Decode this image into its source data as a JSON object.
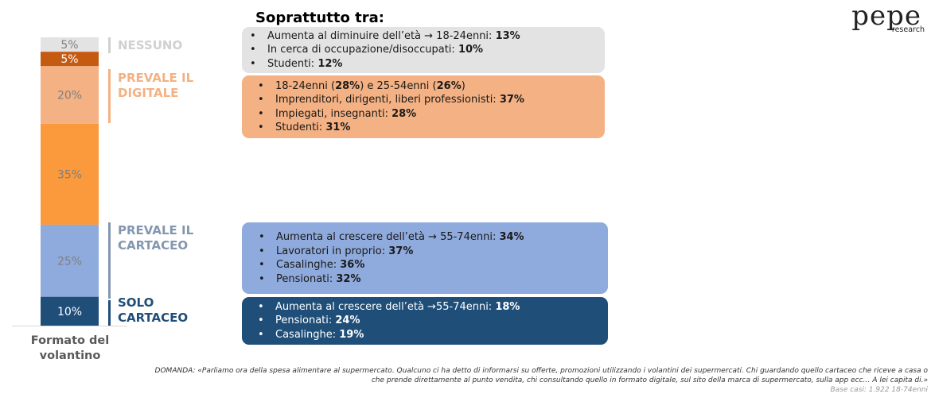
{
  "chart_data": {
    "type": "stacked-bar",
    "categories": [
      "Formato del volantino"
    ],
    "series": [
      {
        "color": "#e3e3e3",
        "text_color": "#7f7f7f",
        "values": [
          5
        ],
        "value_labels": [
          "5%"
        ]
      },
      {
        "color": "#c55a11",
        "text_color": "#ffffff",
        "values": [
          5
        ],
        "value_labels": [
          "5%"
        ]
      },
      {
        "color": "#f4b183",
        "text_color": "#7f7f7f",
        "values": [
          20
        ],
        "value_labels": [
          "20%"
        ]
      },
      {
        "color": "#fb9a3c",
        "text_color": "#7f7f7f",
        "values": [
          35
        ],
        "value_labels": [
          "35%"
        ]
      },
      {
        "color": "#8faadc",
        "text_color": "#7f7f7f",
        "values": [
          25
        ],
        "value_labels": [
          "25%"
        ]
      },
      {
        "color": "#1f4e79",
        "text_color": "#ffffff",
        "values": [
          10
        ],
        "value_labels": [
          "10%"
        ]
      }
    ]
  },
  "heading": "Soprattutto tra:",
  "groups": [
    {
      "label": "NESSUNO",
      "label_color": "#d0d0d0",
      "box_color": "#e3e3e3",
      "box_text": "#1a1a1a",
      "bullets": [
        [
          {
            "text": "Aumenta al diminuire dell’età → 18-24enni: ",
            "bold": false
          },
          {
            "text": "13%",
            "bold": true
          }
        ],
        [
          {
            "text": "In cerca di occupazione/disoccupati: ",
            "bold": false
          },
          {
            "text": "10%",
            "bold": true
          }
        ],
        [
          {
            "text": "Studenti: ",
            "bold": false
          },
          {
            "text": "12%",
            "bold": true
          }
        ]
      ]
    },
    {
      "label": "PREVALE IL DIGITALE",
      "label_color": "#f4b183",
      "box_color": "#f4b183",
      "box_text": "#1a1a1a",
      "bullets": [
        [
          {
            "text": "18-24enni (",
            "bold": false
          },
          {
            "text": "28%",
            "bold": true
          },
          {
            "text": ") e 25-54enni (",
            "bold": false
          },
          {
            "text": "26%",
            "bold": true
          },
          {
            "text": ")",
            "bold": false
          }
        ],
        [
          {
            "text": "Imprenditori, dirigenti, liberi professionisti: ",
            "bold": false
          },
          {
            "text": "37%",
            "bold": true
          }
        ],
        [
          {
            "text": "Impiegati, insegnanti: ",
            "bold": false
          },
          {
            "text": "28%",
            "bold": true
          }
        ],
        [
          {
            "text": "Studenti: ",
            "bold": false
          },
          {
            "text": "31%",
            "bold": true
          }
        ]
      ]
    },
    {
      "label": "PREVALE IL CARTACEO",
      "label_color": "#8497b0",
      "box_color": "#8faadc",
      "box_text": "#1a1a1a",
      "bullets": [
        [
          {
            "text": "Aumenta al crescere dell’età → 55-74enni: ",
            "bold": false
          },
          {
            "text": "34%",
            "bold": true
          }
        ],
        [
          {
            "text": "Lavoratori in proprio: ",
            "bold": false
          },
          {
            "text": "37%",
            "bold": true
          }
        ],
        [
          {
            "text": "Casalinghe: ",
            "bold": false
          },
          {
            "text": "36%",
            "bold": true
          }
        ],
        [
          {
            "text": "Pensionati: ",
            "bold": false
          },
          {
            "text": "32%",
            "bold": true
          }
        ]
      ]
    },
    {
      "label": "SOLO CARTACEO",
      "label_color": "#1f4e79",
      "box_color": "#1f4e79",
      "box_text": "#ffffff",
      "bullets": [
        [
          {
            "text": "Aumenta al crescere dell’età →55-74enni: ",
            "bold": false
          },
          {
            "text": "18%",
            "bold": true
          }
        ],
        [
          {
            "text": "Pensionati: ",
            "bold": false
          },
          {
            "text": "24%",
            "bold": true
          }
        ],
        [
          {
            "text": "Casalinghe: ",
            "bold": false
          },
          {
            "text": "19%",
            "bold": true
          }
        ]
      ]
    }
  ],
  "logo": {
    "name": "pepe",
    "sub": "research"
  },
  "footnote": {
    "lines": [
      "DOMANDA: «Parliamo ora della spesa alimentare al supermercato. Qualcuno ci ha detto di informarsi su offerte, promozioni utilizzando i volantini dei supermercati. Chi guardando quello cartaceo che riceve a casa o",
      "che prende direttamente al punto vendita, chi consultando quello in formato digitale, sul sito della marca di supermercato, sulla app ecc… A lei capita di.»"
    ],
    "base": "Base casi: 1.922 18-74enni"
  }
}
